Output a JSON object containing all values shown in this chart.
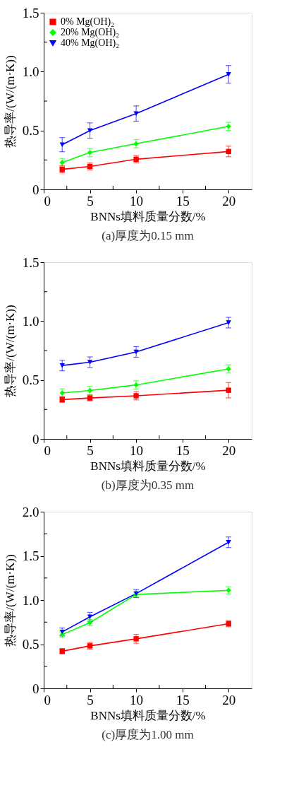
{
  "chart_data": [
    {
      "type": "line",
      "xlabel": "BNNs填料质量分数/%",
      "ylabel": "热导率/(W/(m·K))",
      "annotations": [
        "(a)厚度为0.15 mm"
      ],
      "x": [
        2,
        5,
        10,
        20
      ],
      "xlim": [
        0,
        22.5
      ],
      "xticks": [
        0,
        {
          "value": 2.5,
          "label": null
        },
        5,
        {
          "value": 7.5,
          "label": null
        },
        10,
        {
          "value": 12.5,
          "label": null
        },
        15,
        {
          "value": 17.5,
          "label": null
        },
        20
      ],
      "ylim": [
        0,
        1.5
      ],
      "yticks": [
        0,
        {
          "value": 0.25,
          "label": null
        },
        0.5,
        {
          "value": 0.75,
          "label": null
        },
        {
          "value": 1.0,
          "label": "1.0"
        },
        {
          "value": 1.25,
          "label": null
        },
        1.5
      ],
      "grid": false,
      "legend": "top left",
      "line_style": "solid",
      "series": [
        {
          "name": "0% Mg(OH)₂",
          "color": "#ff0000",
          "marker": "square",
          "values": [
            0.17,
            0.195,
            0.256,
            0.322
          ],
          "errors": [
            0.03,
            0.03,
            0.03,
            0.045
          ]
        },
        {
          "name": "20% Mg(OH)₂",
          "color": "#00ff00",
          "marker": "diamond",
          "values": [
            0.228,
            0.313,
            0.388,
            0.535
          ],
          "errors": [
            0.035,
            0.035,
            0.035,
            0.035
          ]
        },
        {
          "name": "40% Mg(OH)₂",
          "color": "#0000ff",
          "marker": "triangle-down",
          "values": [
            0.38,
            0.5,
            0.644,
            0.977
          ],
          "errors": [
            0.06,
            0.065,
            0.065,
            0.075
          ]
        }
      ]
    },
    {
      "type": "line",
      "xlabel": "BNNs填料质量分数/%",
      "ylabel": "热导率/(W/(m·K))",
      "annotations": [
        "(b)厚度为0.35 mm"
      ],
      "x": [
        2,
        5,
        10,
        20
      ],
      "xlim": [
        0,
        22.5
      ],
      "xticks": [
        0,
        {
          "value": 2.5,
          "label": null
        },
        5,
        {
          "value": 7.5,
          "label": null
        },
        10,
        {
          "value": 12.5,
          "label": null
        },
        15,
        {
          "value": 17.5,
          "label": null
        },
        20
      ],
      "ylim": [
        0,
        1.5
      ],
      "yticks": [
        0,
        {
          "value": 0.25,
          "label": null
        },
        0.5,
        {
          "value": 0.75,
          "label": null
        },
        {
          "value": 1.0,
          "label": "1.0"
        },
        {
          "value": 1.25,
          "label": null
        },
        1.5
      ],
      "grid": false,
      "legend": "top left",
      "line_style": "solid",
      "series": [
        {
          "name": "0% Mg(OH)₂",
          "color": "#ff0000",
          "marker": "square",
          "values": [
            0.334,
            0.347,
            0.366,
            0.413
          ],
          "errors": [
            0.025,
            0.025,
            0.035,
            0.065
          ]
        },
        {
          "name": "20% Mg(OH)₂",
          "color": "#00ff00",
          "marker": "diamond",
          "values": [
            0.39,
            0.411,
            0.458,
            0.594
          ],
          "errors": [
            0.035,
            0.035,
            0.035,
            0.035
          ]
        },
        {
          "name": "40% Mg(OH)₂",
          "color": "#0000ff",
          "marker": "triangle-down",
          "values": [
            0.623,
            0.651,
            0.738,
            0.987
          ],
          "errors": [
            0.045,
            0.045,
            0.045,
            0.045
          ]
        }
      ]
    },
    {
      "type": "line",
      "xlabel": "BNNs填料质量分数/%",
      "ylabel": "热导率/(W/(m·K))",
      "annotations": [
        "(c)厚度为1.00 mm"
      ],
      "x": [
        2,
        5,
        10,
        20
      ],
      "xlim": [
        0,
        22.5
      ],
      "xticks": [
        0,
        {
          "value": 2.5,
          "label": null
        },
        5,
        {
          "value": 7.5,
          "label": null
        },
        10,
        {
          "value": 12.5,
          "label": null
        },
        15,
        {
          "value": 17.5,
          "label": null
        },
        20
      ],
      "ylim": [
        0,
        2.0
      ],
      "yticks": [
        0,
        {
          "value": 0.25,
          "label": null
        },
        0.5,
        {
          "value": 0.75,
          "label": null
        },
        {
          "value": 1.0,
          "label": "1.0"
        },
        {
          "value": 1.25,
          "label": null
        },
        1.5,
        {
          "value": 1.75,
          "label": null
        },
        {
          "value": 2.0,
          "label": "2.0"
        }
      ],
      "grid": false,
      "legend": "top left",
      "line_style": "solid",
      "series": [
        {
          "name": "0% Mg(OH)₂",
          "color": "#ff0000",
          "marker": "square",
          "values": [
            0.421,
            0.481,
            0.561,
            0.732
          ],
          "errors": [
            0.03,
            0.04,
            0.05,
            0.035
          ]
        },
        {
          "name": "20% Mg(OH)₂",
          "color": "#00ff00",
          "marker": "diamond",
          "values": [
            0.609,
            0.744,
            1.063,
            1.11
          ],
          "errors": [
            0.03,
            0.035,
            0.03,
            0.04
          ]
        },
        {
          "name": "40% Mg(OH)₂",
          "color": "#0000ff",
          "marker": "triangle-down",
          "values": [
            0.639,
            0.81,
            1.073,
            1.654
          ],
          "errors": [
            0.045,
            0.05,
            0.045,
            0.06
          ]
        }
      ]
    }
  ]
}
